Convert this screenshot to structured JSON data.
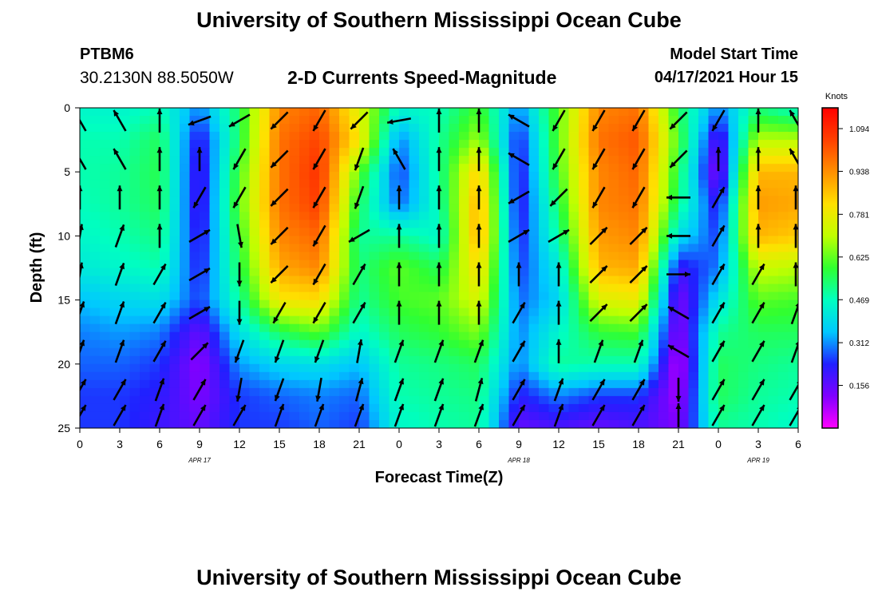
{
  "header": {
    "title": "University of Southern Mississippi Ocean Cube",
    "footer_title": "University of Southern Mississippi Ocean Cube",
    "station": "PTBM6",
    "coordinates": "30.2130N  88.5050W",
    "subtitle": "2-D Currents Speed-Magnitude",
    "model_start_label": "Model Start Time",
    "model_start_value": "04/17/2021 Hour 15"
  },
  "chart_data": {
    "type": "heatmap",
    "title": "2-D Currents Speed-Magnitude",
    "xlabel": "Forecast Time(Z)",
    "ylabel": "Depth (ft)",
    "x_tick_labels": [
      "0",
      "3",
      "6",
      "9",
      "12",
      "15",
      "18",
      "21",
      "0",
      "3",
      "6",
      "9",
      "12",
      "15",
      "18",
      "21",
      "0",
      "3",
      "6"
    ],
    "date_labels": [
      {
        "label": "APR 17",
        "at_tick": 3
      },
      {
        "label": "APR 18",
        "at_tick": 11
      },
      {
        "label": "APR 19",
        "at_tick": 17
      }
    ],
    "y_ticks": [
      0,
      5,
      10,
      15,
      20,
      25
    ],
    "y_range": [
      0,
      25
    ],
    "colorbar": {
      "label": "Knots",
      "ticks": [
        "1.094",
        "0.938",
        "0.781",
        "0.625",
        "0.469",
        "0.312",
        "0.156"
      ],
      "range": [
        0,
        1.17
      ],
      "colors": [
        "#ff00ff",
        "#8000ff",
        "#2020ff",
        "#00c8ff",
        "#00ffc0",
        "#30ff30",
        "#c0ff00",
        "#ffe000",
        "#ff9000",
        "#ff4000",
        "#ff0000"
      ]
    },
    "depth_samples": [
      0,
      2.5,
      5,
      7.5,
      10,
      12.5,
      15,
      17.5,
      20,
      22.5,
      25
    ],
    "time_steps": [
      "0",
      "3",
      "6",
      "9",
      "12",
      "15",
      "18",
      "21",
      "0",
      "3",
      "6",
      "9",
      "12",
      "15",
      "18",
      "21",
      "0",
      "3",
      "6"
    ],
    "speed_knots": [
      [
        0.45,
        0.44,
        0.48,
        0.3,
        0.55,
        0.95,
        1.0,
        0.75,
        0.45,
        0.47,
        0.6,
        0.3,
        0.62,
        0.95,
        0.98,
        0.55,
        0.3,
        0.52,
        0.45
      ],
      [
        0.48,
        0.48,
        0.55,
        0.2,
        0.55,
        0.98,
        1.05,
        0.8,
        0.3,
        0.5,
        0.68,
        0.22,
        0.62,
        0.98,
        1.02,
        0.6,
        0.15,
        0.7,
        0.7
      ],
      [
        0.48,
        0.5,
        0.56,
        0.18,
        0.6,
        0.98,
        1.08,
        0.62,
        0.25,
        0.5,
        0.85,
        0.2,
        0.6,
        0.95,
        1.0,
        0.55,
        0.1,
        0.88,
        0.88
      ],
      [
        0.47,
        0.5,
        0.55,
        0.18,
        0.62,
        0.98,
        1.06,
        0.55,
        0.28,
        0.48,
        0.9,
        0.2,
        0.55,
        0.95,
        0.98,
        0.52,
        0.2,
        0.92,
        0.9
      ],
      [
        0.45,
        0.48,
        0.52,
        0.2,
        0.58,
        0.95,
        1.0,
        0.5,
        0.5,
        0.45,
        0.9,
        0.22,
        0.5,
        0.92,
        0.95,
        0.4,
        0.25,
        0.88,
        0.85
      ],
      [
        0.42,
        0.45,
        0.48,
        0.22,
        0.55,
        0.9,
        0.95,
        0.52,
        0.62,
        0.55,
        0.82,
        0.25,
        0.42,
        0.88,
        0.9,
        0.2,
        0.3,
        0.72,
        0.7
      ],
      [
        0.35,
        0.38,
        0.4,
        0.25,
        0.5,
        0.8,
        0.82,
        0.5,
        0.6,
        0.62,
        0.75,
        0.28,
        0.38,
        0.75,
        0.78,
        0.12,
        0.4,
        0.62,
        0.6
      ],
      [
        0.3,
        0.32,
        0.3,
        0.15,
        0.4,
        0.55,
        0.62,
        0.45,
        0.55,
        0.58,
        0.65,
        0.3,
        0.45,
        0.58,
        0.6,
        0.1,
        0.5,
        0.55,
        0.55
      ],
      [
        0.28,
        0.28,
        0.25,
        0.1,
        0.32,
        0.38,
        0.4,
        0.35,
        0.5,
        0.52,
        0.55,
        0.3,
        0.5,
        0.48,
        0.48,
        0.05,
        0.55,
        0.52,
        0.5
      ],
      [
        0.25,
        0.25,
        0.22,
        0.12,
        0.25,
        0.28,
        0.3,
        0.28,
        0.48,
        0.5,
        0.52,
        0.22,
        0.3,
        0.25,
        0.25,
        0.08,
        0.55,
        0.5,
        0.48
      ],
      [
        0.25,
        0.25,
        0.2,
        0.15,
        0.25,
        0.25,
        0.28,
        0.25,
        0.45,
        0.48,
        0.5,
        0.15,
        0.18,
        0.15,
        0.18,
        0.12,
        0.5,
        0.48,
        0.45
      ]
    ],
    "arrow_depths": [
      1,
      4,
      7,
      10,
      13,
      16,
      19,
      22,
      24
    ],
    "arrow_direction_deg": [
      [
        330,
        330,
        0,
        250,
        240,
        225,
        210,
        225,
        260,
        0,
        0,
        300,
        210,
        210,
        210,
        225,
        210,
        0,
        330
      ],
      [
        330,
        330,
        0,
        0,
        210,
        225,
        210,
        200,
        330,
        0,
        0,
        300,
        210,
        210,
        210,
        225,
        0,
        0,
        330
      ],
      [
        0,
        0,
        0,
        210,
        210,
        225,
        210,
        200,
        0,
        0,
        0,
        240,
        225,
        210,
        210,
        270,
        30,
        0,
        0
      ],
      [
        10,
        20,
        0,
        60,
        170,
        225,
        210,
        240,
        0,
        0,
        0,
        60,
        60,
        45,
        45,
        270,
        30,
        0,
        0
      ],
      [
        10,
        20,
        30,
        60,
        180,
        225,
        210,
        30,
        0,
        0,
        0,
        0,
        0,
        45,
        45,
        90,
        30,
        30,
        0
      ],
      [
        20,
        20,
        30,
        60,
        180,
        210,
        210,
        30,
        0,
        0,
        0,
        30,
        0,
        45,
        45,
        300,
        30,
        30,
        20
      ],
      [
        20,
        20,
        30,
        45,
        200,
        200,
        200,
        10,
        20,
        20,
        20,
        30,
        0,
        20,
        20,
        300,
        30,
        30,
        20
      ],
      [
        30,
        30,
        20,
        30,
        190,
        200,
        190,
        15,
        20,
        20,
        15,
        30,
        20,
        30,
        30,
        180,
        30,
        30,
        30
      ],
      [
        30,
        30,
        20,
        30,
        30,
        20,
        20,
        20,
        20,
        20,
        20,
        30,
        20,
        30,
        30,
        0,
        30,
        30,
        30
      ]
    ]
  }
}
